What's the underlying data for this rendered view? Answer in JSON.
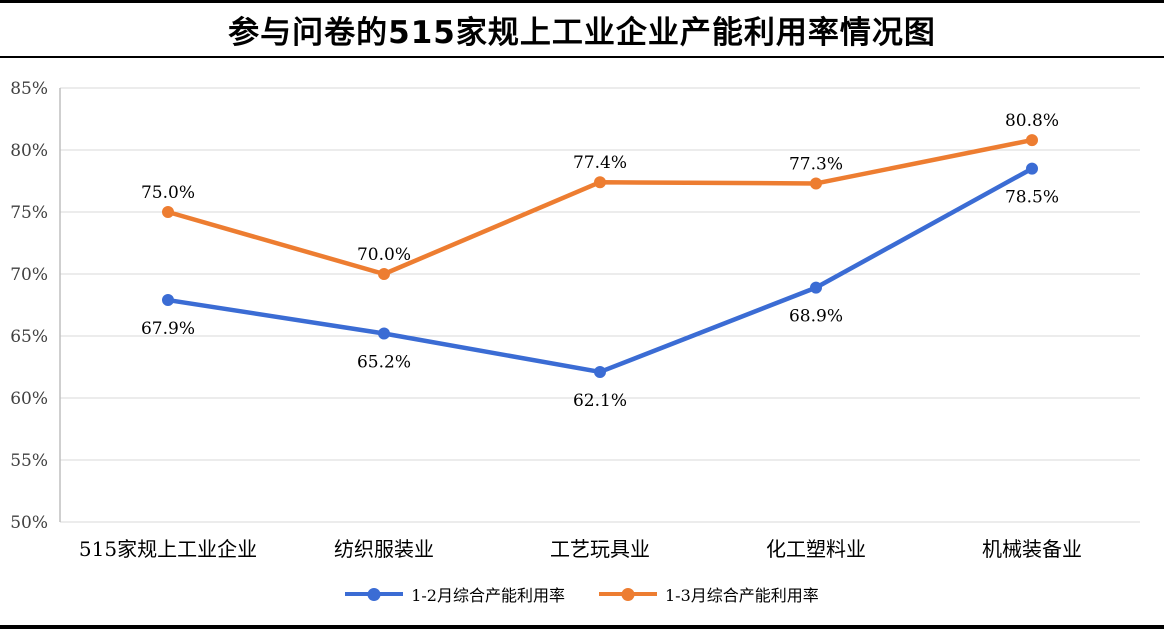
{
  "title": "参与问卷的515家规上工业企业产能利用率情况图",
  "colors": {
    "grid": "#d9d9d9",
    "axis": "#bfbfbf",
    "text": "#000000",
    "border": "#000000",
    "series1": "#3b6cd4",
    "series2": "#ed7d31"
  },
  "chart_data": {
    "type": "line",
    "title": "参与问卷的515家规上工业企业产能利用率情况图",
    "categories": [
      "515家规上工业企业",
      "纺织服装业",
      "工艺玩具业",
      "化工塑料业",
      "机械装备业"
    ],
    "series": [
      {
        "name": "1-2月综合产能利用率",
        "color": "#3b6cd4",
        "values": [
          67.9,
          65.2,
          62.1,
          68.9,
          78.5
        ],
        "labels": [
          "67.9%",
          "65.2%",
          "62.1%",
          "68.9%",
          "78.5%"
        ],
        "label_position": "below"
      },
      {
        "name": "1-3月综合产能利用率",
        "color": "#ed7d31",
        "values": [
          75.0,
          70.0,
          77.4,
          77.3,
          80.8
        ],
        "labels": [
          "75.0%",
          "70.0%",
          "77.4%",
          "77.3%",
          "80.8%"
        ],
        "label_position": "above"
      }
    ],
    "ylim": [
      50,
      85
    ],
    "ytick_step": 5,
    "ytick_labels": [
      "50%",
      "55%",
      "60%",
      "65%",
      "70%",
      "75%",
      "80%",
      "85%"
    ],
    "xlabel": "",
    "ylabel": "",
    "grid": true,
    "legend_position": "bottom"
  }
}
